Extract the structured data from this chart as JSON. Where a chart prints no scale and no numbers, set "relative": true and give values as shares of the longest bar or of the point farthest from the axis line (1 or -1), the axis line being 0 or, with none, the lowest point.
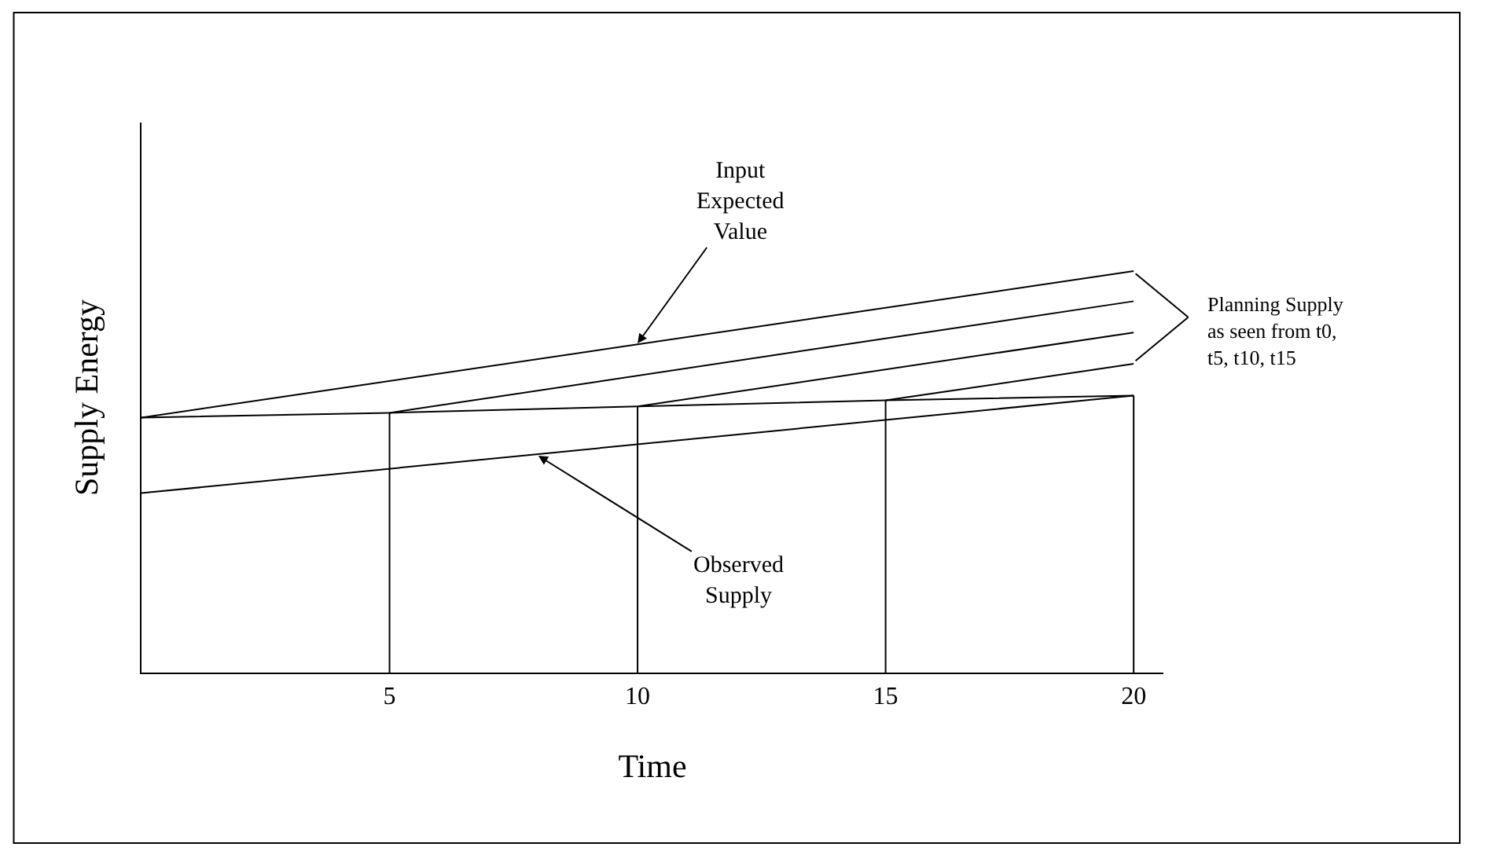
{
  "chart_data": {
    "type": "line",
    "relative": true,
    "xlabel": "Time",
    "ylabel": "Supply Energy",
    "xlim": [
      0,
      20.6
    ],
    "xticks": [
      5,
      10,
      15,
      20
    ],
    "marker": "none",
    "line_style": "solid",
    "series": [
      {
        "color": "#000000",
        "x": [
          0,
          20
        ],
        "values": [
          0.635,
          1
        ]
      },
      {
        "color": "#000000",
        "x": [
          5,
          20
        ],
        "values": [
          0.647,
          0.925
        ]
      },
      {
        "color": "#000000",
        "x": [
          10,
          20
        ],
        "values": [
          0.663,
          0.847
        ]
      },
      {
        "color": "#000000",
        "x": [
          15,
          20
        ],
        "values": [
          0.678,
          0.769
        ]
      },
      {
        "color": "#000000",
        "x": [
          0,
          5,
          10,
          15,
          20
        ],
        "values": [
          0.635,
          0.647,
          0.663,
          0.678,
          0.69
        ]
      },
      {
        "color": "#000000",
        "x": [
          0,
          20
        ],
        "values": [
          0.447,
          0.69
        ]
      },
      {
        "color": "#000000",
        "x": [
          5,
          5
        ],
        "values": [
          0,
          0.647
        ]
      },
      {
        "color": "#000000",
        "x": [
          10,
          10
        ],
        "values": [
          0,
          0.663
        ]
      },
      {
        "color": "#000000",
        "x": [
          15,
          15
        ],
        "values": [
          0,
          0.678
        ]
      },
      {
        "color": "#000000",
        "x": [
          20,
          20
        ],
        "values": [
          0,
          0.69
        ]
      }
    ],
    "annotations": [
      {
        "text": "Input\nExpected\nValue",
        "x": 10,
        "y": 0.82
      },
      {
        "text": "Observed\nSupply",
        "x": 8,
        "y": 0.54
      },
      "Planning Supply\nas seen from t0,\nt5, t10, t15"
    ]
  }
}
